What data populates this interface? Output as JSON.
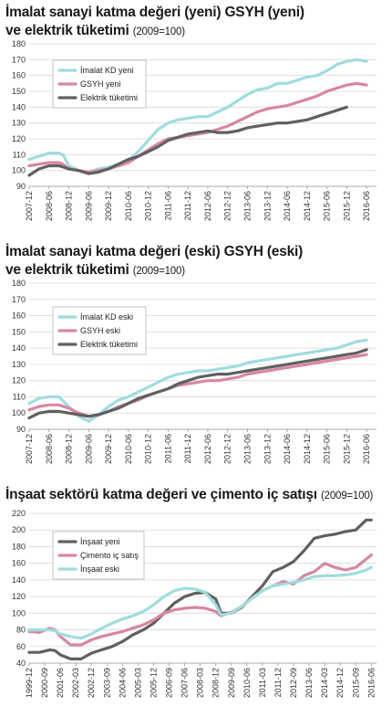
{
  "colors": {
    "teal": "#9fdcdf",
    "pink": "#d986a3",
    "gray": "#606060",
    "grid": "#d8d8d8",
    "legend_border": "#b5b5b5"
  },
  "chart_data": [
    {
      "type": "line",
      "title": "İmalat sanayi katma değeri (yeni) GSYH (yeni)",
      "title_line2": "ve elektrik tüketimi",
      "subtitle": "(2009=100)",
      "ylim": [
        90,
        180
      ],
      "yticks": [
        90,
        100,
        110,
        120,
        130,
        140,
        150,
        160,
        170,
        180
      ],
      "xlim": [
        2007.75,
        2016.5
      ],
      "xticks": [
        {
          "x": 2007.75,
          "label": "2007-12"
        },
        {
          "x": 2008.25,
          "label": "2008-06"
        },
        {
          "x": 2008.75,
          "label": "2008-12"
        },
        {
          "x": 2009.25,
          "label": "2009-06"
        },
        {
          "x": 2009.75,
          "label": "2009-12"
        },
        {
          "x": 2010.25,
          "label": "2010-06"
        },
        {
          "x": 2010.75,
          "label": "2010-12"
        },
        {
          "x": 2011.25,
          "label": "2011-06"
        },
        {
          "x": 2011.75,
          "label": "2011-12"
        },
        {
          "x": 2012.25,
          "label": "2012-06"
        },
        {
          "x": 2012.75,
          "label": "2012-12"
        },
        {
          "x": 2013.25,
          "label": "2013-06"
        },
        {
          "x": 2013.75,
          "label": "2013-12"
        },
        {
          "x": 2014.25,
          "label": "2014-06"
        },
        {
          "x": 2014.75,
          "label": "2014-12"
        },
        {
          "x": 2015.25,
          "label": "2015-06"
        },
        {
          "x": 2015.75,
          "label": "2015-12"
        },
        {
          "x": 2016.25,
          "label": "2016-06"
        }
      ],
      "legend": "top-left",
      "series": [
        {
          "name": "İmalat KD yeni",
          "color_key": "teal",
          "x": [
            2007.75,
            2008.0,
            2008.25,
            2008.5,
            2008.6,
            2008.75,
            2009.0,
            2009.25,
            2009.5,
            2009.75,
            2010.0,
            2010.25,
            2010.5,
            2010.75,
            2011.0,
            2011.25,
            2011.5,
            2011.75,
            2012.0,
            2012.25,
            2012.5,
            2012.75,
            2013.0,
            2013.25,
            2013.5,
            2013.75,
            2014.0,
            2014.25,
            2014.5,
            2014.75,
            2015.0,
            2015.25,
            2015.5,
            2015.75,
            2016.0,
            2016.25
          ],
          "y": [
            107,
            109,
            111,
            111,
            110,
            103,
            100,
            99,
            101,
            102,
            104,
            106,
            112,
            119,
            126,
            130,
            132,
            133,
            134,
            134,
            137,
            140,
            144,
            148,
            151,
            152,
            155,
            155,
            157,
            159,
            160,
            163,
            167,
            169,
            170,
            169
          ]
        },
        {
          "name": "GSYH yeni",
          "color_key": "pink",
          "x": [
            2007.75,
            2008.0,
            2008.25,
            2008.5,
            2008.6,
            2008.75,
            2009.0,
            2009.25,
            2009.5,
            2009.75,
            2010.0,
            2010.25,
            2010.5,
            2010.75,
            2011.0,
            2011.25,
            2011.5,
            2011.75,
            2012.0,
            2012.25,
            2012.5,
            2012.75,
            2013.0,
            2013.25,
            2013.5,
            2013.75,
            2014.0,
            2014.25,
            2014.5,
            2014.75,
            2015.0,
            2015.25,
            2015.5,
            2015.75,
            2016.0,
            2016.25
          ],
          "y": [
            103,
            104,
            105,
            105,
            104,
            101,
            100,
            99,
            100,
            101,
            103,
            105,
            109,
            113,
            117,
            120,
            121,
            122,
            123,
            124,
            126,
            128,
            131,
            134,
            137,
            139,
            140,
            141,
            143,
            145,
            147,
            150,
            152,
            154,
            155,
            154
          ]
        },
        {
          "name": "Elektrik tüketimi",
          "color_key": "gray",
          "x": [
            2007.75,
            2008.0,
            2008.25,
            2008.5,
            2008.75,
            2009.0,
            2009.25,
            2009.5,
            2009.75,
            2010.0,
            2010.25,
            2010.5,
            2010.75,
            2011.0,
            2011.25,
            2011.5,
            2011.75,
            2012.0,
            2012.25,
            2012.5,
            2012.75,
            2013.0,
            2013.25,
            2013.5,
            2013.75,
            2014.0,
            2014.25,
            2014.5,
            2014.75,
            2015.0,
            2015.25,
            2015.5,
            2015.75
          ],
          "y": [
            97,
            101,
            103,
            103,
            101,
            100,
            98,
            99,
            101,
            104,
            107,
            109,
            112,
            115,
            119,
            121,
            123,
            124,
            125,
            124,
            124,
            125,
            127,
            128,
            129,
            130,
            130,
            131,
            132,
            134,
            136,
            138,
            140
          ]
        }
      ]
    },
    {
      "type": "line",
      "title": "İmalat sanayi katma değeri (eski) GSYH (eski)",
      "title_line2": "ve elektrik tüketimi",
      "subtitle": "(2009=100)",
      "ylim": [
        90,
        180
      ],
      "yticks": [
        90,
        100,
        110,
        120,
        130,
        140,
        150,
        160,
        170,
        180
      ],
      "xlim": [
        2007.75,
        2016.5
      ],
      "xticks": [
        {
          "x": 2007.75,
          "label": "2007-12"
        },
        {
          "x": 2008.25,
          "label": "2008-06"
        },
        {
          "x": 2008.75,
          "label": "2008-12"
        },
        {
          "x": 2009.25,
          "label": "2009-06"
        },
        {
          "x": 2009.75,
          "label": "2009-12"
        },
        {
          "x": 2010.25,
          "label": "2010-06"
        },
        {
          "x": 2010.75,
          "label": "2010-12"
        },
        {
          "x": 2011.25,
          "label": "2011-06"
        },
        {
          "x": 2011.75,
          "label": "2011-12"
        },
        {
          "x": 2012.25,
          "label": "2012-06"
        },
        {
          "x": 2012.75,
          "label": "2012-12"
        },
        {
          "x": 2013.25,
          "label": "2013-06"
        },
        {
          "x": 2013.75,
          "label": "2013-12"
        },
        {
          "x": 2014.25,
          "label": "2014-06"
        },
        {
          "x": 2014.75,
          "label": "2014-12"
        },
        {
          "x": 2015.25,
          "label": "2015-06"
        },
        {
          "x": 2015.75,
          "label": "2015-12"
        },
        {
          "x": 2016.25,
          "label": "2016-06"
        }
      ],
      "legend": "top-left",
      "series": [
        {
          "name": "İmalat KD eski",
          "color_key": "teal",
          "x": [
            2007.75,
            2008.0,
            2008.25,
            2008.5,
            2008.75,
            2009.0,
            2009.25,
            2009.5,
            2009.75,
            2010.0,
            2010.25,
            2010.5,
            2010.75,
            2011.0,
            2011.25,
            2011.5,
            2011.75,
            2012.0,
            2012.25,
            2012.5,
            2012.75,
            2013.0,
            2013.25,
            2013.5,
            2013.75,
            2014.0,
            2014.25,
            2014.5,
            2014.75,
            2015.0,
            2015.25,
            2015.5,
            2015.75,
            2016.0,
            2016.25
          ],
          "y": [
            106,
            109,
            110,
            110,
            104,
            98,
            95,
            99,
            104,
            108,
            110,
            113,
            116,
            119,
            122,
            124,
            125,
            126,
            126,
            127,
            128,
            129,
            131,
            132,
            133,
            134,
            135,
            136,
            137,
            138,
            139,
            140,
            142,
            144,
            145
          ]
        },
        {
          "name": "GSYH eski",
          "color_key": "pink",
          "x": [
            2007.75,
            2008.0,
            2008.25,
            2008.5,
            2008.75,
            2009.0,
            2009.25,
            2009.5,
            2009.75,
            2010.0,
            2010.25,
            2010.5,
            2010.75,
            2011.0,
            2011.25,
            2011.5,
            2011.75,
            2012.0,
            2012.25,
            2012.5,
            2012.75,
            2013.0,
            2013.25,
            2013.5,
            2013.75,
            2014.0,
            2014.25,
            2014.5,
            2014.75,
            2015.0,
            2015.25,
            2015.5,
            2015.75,
            2016.0,
            2016.25
          ],
          "y": [
            102,
            104,
            105,
            105,
            103,
            100,
            98,
            99,
            101,
            104,
            106,
            108,
            111,
            113,
            115,
            117,
            118,
            119,
            120,
            120,
            121,
            122,
            124,
            125,
            126,
            127,
            128,
            129,
            130,
            131,
            132,
            133,
            134,
            135,
            136
          ]
        },
        {
          "name": "Elektrik tüketimi",
          "color_key": "gray",
          "x": [
            2007.75,
            2008.0,
            2008.25,
            2008.5,
            2008.75,
            2009.0,
            2009.25,
            2009.5,
            2009.75,
            2010.0,
            2010.25,
            2010.5,
            2010.75,
            2011.0,
            2011.25,
            2011.5,
            2011.75,
            2012.0,
            2012.25,
            2012.5,
            2012.75,
            2013.0,
            2013.25,
            2013.5,
            2013.75,
            2014.0,
            2014.25,
            2014.5,
            2014.75,
            2015.0,
            2015.25,
            2015.5,
            2015.75,
            2016.0,
            2016.25
          ],
          "y": [
            97,
            100,
            101,
            101,
            100,
            99,
            98,
            99,
            101,
            103,
            106,
            109,
            111,
            113,
            115,
            118,
            120,
            122,
            123,
            124,
            124,
            125,
            126,
            127,
            128,
            129,
            130,
            131,
            132,
            133,
            134,
            135,
            136,
            137,
            139
          ]
        }
      ]
    },
    {
      "type": "line",
      "title": "İnşaat sektörü katma değeri ve çimento iç satışı",
      "subtitle": "(2009=100)",
      "ylim": [
        40,
        220
      ],
      "yticks": [
        40,
        60,
        80,
        100,
        120,
        140,
        160,
        180,
        200,
        220
      ],
      "xlim": [
        1999.75,
        2016.5
      ],
      "xticks": [
        {
          "x": 1999.75,
          "label": "1999-12"
        },
        {
          "x": 2000.5,
          "label": "2000-09"
        },
        {
          "x": 2001.25,
          "label": "2001-06"
        },
        {
          "x": 2002.0,
          "label": "2002-03"
        },
        {
          "x": 2002.75,
          "label": "2002-12"
        },
        {
          "x": 2003.5,
          "label": "2003-09"
        },
        {
          "x": 2004.25,
          "label": "2004-06"
        },
        {
          "x": 2005.0,
          "label": "2005-03"
        },
        {
          "x": 2005.75,
          "label": "2005-12"
        },
        {
          "x": 2006.5,
          "label": "2006-09"
        },
        {
          "x": 2007.25,
          "label": "2007-06"
        },
        {
          "x": 2008.0,
          "label": "2008-03"
        },
        {
          "x": 2008.75,
          "label": "2008-12"
        },
        {
          "x": 2009.5,
          "label": "2009-09"
        },
        {
          "x": 2010.25,
          "label": "2010-06"
        },
        {
          "x": 2011.0,
          "label": "2011-03"
        },
        {
          "x": 2011.75,
          "label": "2011-12"
        },
        {
          "x": 2012.5,
          "label": "2012-09"
        },
        {
          "x": 2013.25,
          "label": "2013-06"
        },
        {
          "x": 2014.0,
          "label": "2014-03"
        },
        {
          "x": 2014.75,
          "label": "2014-12"
        },
        {
          "x": 2015.5,
          "label": "2015-09"
        },
        {
          "x": 2016.25,
          "label": "2016-06"
        }
      ],
      "legend": "top-left",
      "series": [
        {
          "name": "İnşaat yeni",
          "color_key": "gray",
          "x": [
            1999.75,
            2000.25,
            2000.75,
            2001.0,
            2001.25,
            2001.75,
            2002.25,
            2002.75,
            2003.25,
            2003.75,
            2004.25,
            2004.75,
            2005.25,
            2005.75,
            2006.25,
            2006.75,
            2007.25,
            2007.75,
            2008.25,
            2008.75,
            2009.0,
            2009.5,
            2010.0,
            2010.5,
            2011.0,
            2011.5,
            2012.0,
            2012.5,
            2013.0,
            2013.5,
            2014.0,
            2014.5,
            2015.0,
            2015.5,
            2016.0,
            2016.25
          ],
          "y": [
            53,
            53,
            56,
            55,
            50,
            45,
            45,
            52,
            56,
            60,
            66,
            74,
            80,
            88,
            100,
            112,
            120,
            124,
            125,
            117,
            100,
            100,
            107,
            120,
            133,
            150,
            155,
            162,
            175,
            190,
            193,
            195,
            198,
            200,
            212,
            212
          ]
        },
        {
          "name": "Çimento iç satış",
          "color_key": "pink",
          "x": [
            1999.75,
            2000.25,
            2000.75,
            2001.0,
            2001.25,
            2001.75,
            2002.25,
            2002.75,
            2003.25,
            2003.75,
            2004.25,
            2004.75,
            2005.25,
            2005.75,
            2006.25,
            2006.75,
            2007.25,
            2007.75,
            2008.25,
            2008.75,
            2009.0,
            2009.5,
            2010.0,
            2010.5,
            2011.0,
            2011.5,
            2012.0,
            2012.5,
            2013.0,
            2013.5,
            2014.0,
            2014.5,
            2015.0,
            2015.5,
            2016.0,
            2016.25
          ],
          "y": [
            78,
            77,
            82,
            80,
            72,
            62,
            62,
            68,
            72,
            75,
            78,
            82,
            86,
            92,
            100,
            104,
            106,
            107,
            106,
            102,
            97,
            101,
            108,
            118,
            127,
            133,
            138,
            135,
            145,
            150,
            160,
            155,
            152,
            155,
            165,
            170
          ]
        },
        {
          "name": "İnşaat eski",
          "color_key": "teal",
          "x": [
            1999.75,
            2000.25,
            2000.75,
            2001.0,
            2001.25,
            2001.75,
            2002.25,
            2002.75,
            2003.25,
            2003.75,
            2004.25,
            2004.75,
            2005.25,
            2005.75,
            2006.25,
            2006.75,
            2007.25,
            2007.75,
            2008.25,
            2008.75,
            2009.0,
            2009.5,
            2010.0,
            2010.5,
            2011.0,
            2011.5,
            2012.0,
            2012.5,
            2013.0,
            2013.5,
            2014.0,
            2014.5,
            2015.0,
            2015.5,
            2016.0,
            2016.25
          ],
          "y": [
            80,
            80,
            80,
            79,
            75,
            72,
            70,
            75,
            82,
            88,
            93,
            97,
            102,
            110,
            120,
            127,
            130,
            129,
            125,
            110,
            98,
            100,
            108,
            118,
            127,
            133,
            135,
            137,
            140,
            144,
            145,
            145,
            146,
            148,
            152,
            155
          ]
        }
      ]
    }
  ]
}
